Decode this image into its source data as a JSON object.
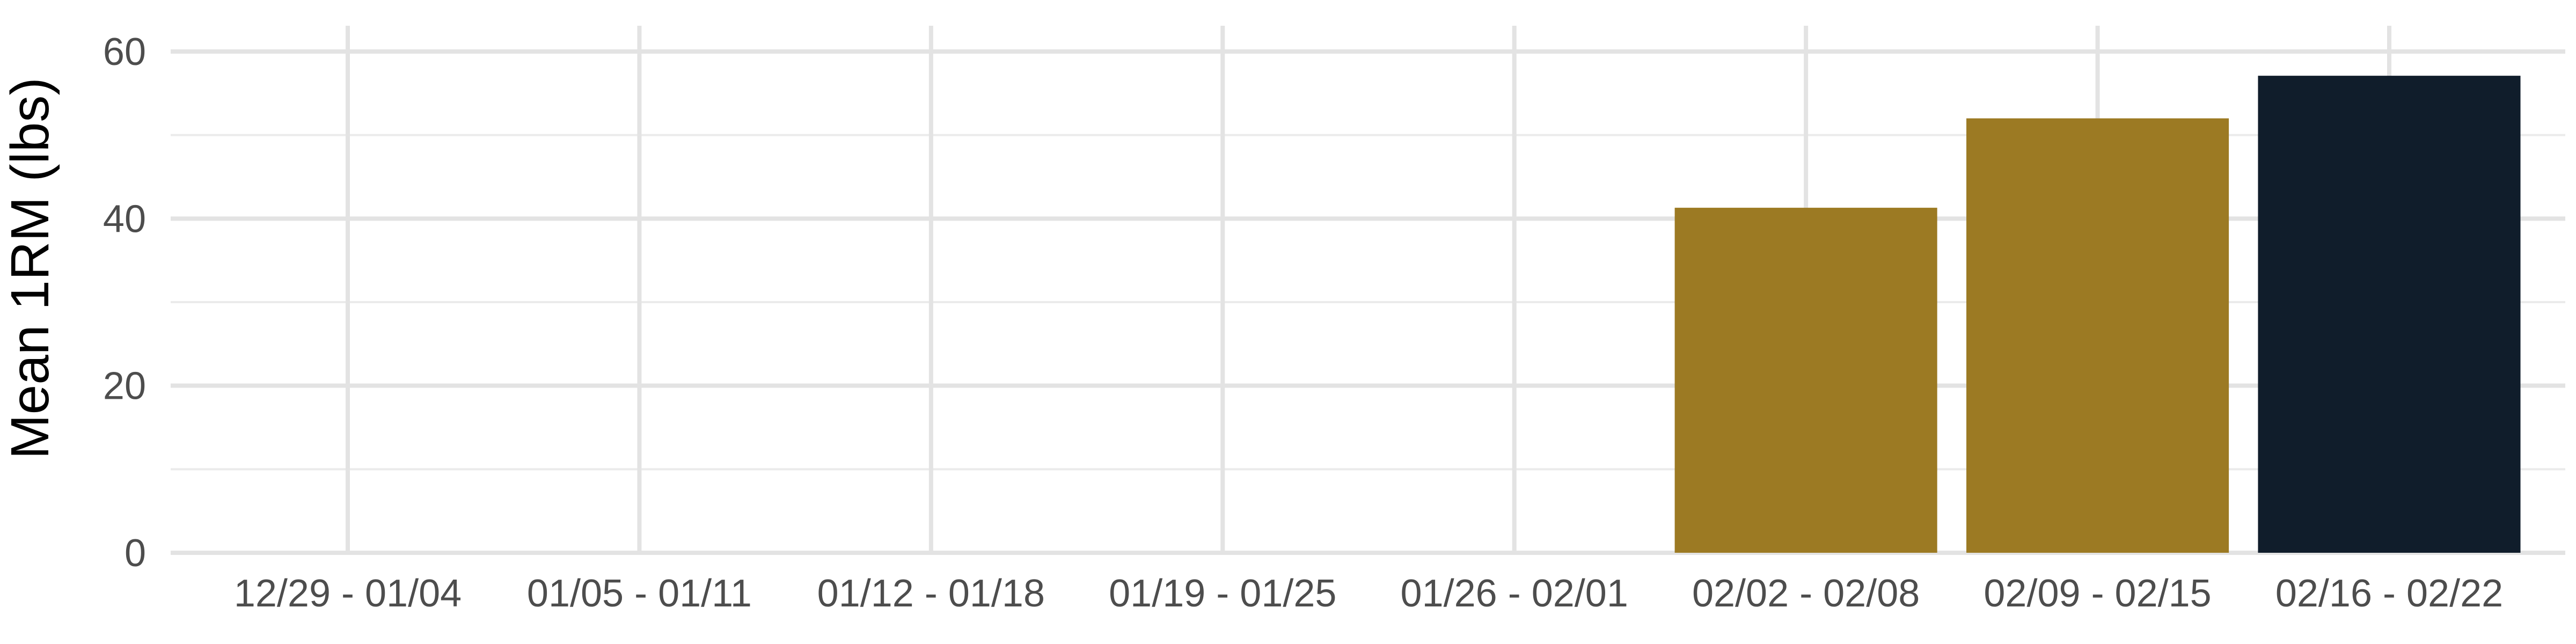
{
  "chart_data": {
    "type": "bar",
    "title": "",
    "xlabel": "",
    "ylabel": "Mean 1RM (lbs)",
    "categories": [
      "12/29 - 01/04",
      "01/05 - 01/11",
      "01/12 - 01/18",
      "01/19 - 01/25",
      "01/26 - 02/01",
      "02/02 - 02/08",
      "02/09 - 02/15",
      "02/16 - 02/22"
    ],
    "values": [
      null,
      null,
      null,
      null,
      null,
      41.3,
      52.0,
      57.1
    ],
    "bar_colors": [
      null,
      null,
      null,
      null,
      null,
      "#9c7a23",
      "#9c7a23",
      "#101d2b"
    ],
    "ylim": [
      0,
      60
    ],
    "yticks": [
      0,
      20,
      40,
      60
    ],
    "grid": true,
    "legend": "none"
  }
}
